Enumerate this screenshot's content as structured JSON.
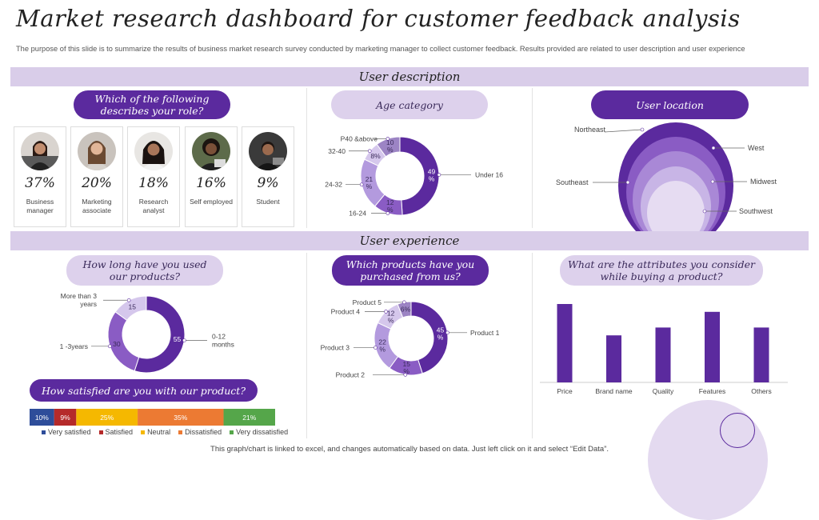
{
  "title": "Market research dashboard for customer feedback analysis",
  "subtitle": "The purpose of this slide is to summarize the results of business market research survey conducted by marketing manager to collect customer feedback. Results provided are related to user description and user experience",
  "sections": {
    "user_description": "User description",
    "user_experience": "User experience"
  },
  "footer": "This graph/chart is linked to excel, and changes automatically based on data. Just left click on it and select “Edit Data”.",
  "role": {
    "question": "Which of the following describes your role?",
    "items": [
      {
        "pct": "37%",
        "label": "Business manager"
      },
      {
        "pct": "20%",
        "label": "Marketing associate"
      },
      {
        "pct": "18%",
        "label": "Research analyst"
      },
      {
        "pct": "16%",
        "label": "Self employed"
      },
      {
        "pct": "9%",
        "label": "Student"
      }
    ]
  },
  "age": {
    "title": "Age category"
  },
  "location": {
    "title": "User location"
  },
  "usage": {
    "question": "How long have you used our products?"
  },
  "products": {
    "question": "Which products have you purchased from us?"
  },
  "attributes": {
    "question": "What are the attributes you consider while buying a product?"
  },
  "satisfaction": {
    "question": "How satisfied are you with our product?"
  },
  "colors": {
    "accent": "#5b2a9e",
    "band": "#d9cde9",
    "light": "#ddd1ec"
  },
  "chart_data": [
    {
      "id": "age",
      "type": "pie",
      "title": "Age category",
      "slices": [
        {
          "label": "Under 16",
          "value": 49,
          "text": "49 %"
        },
        {
          "label": "16-24",
          "value": 12,
          "text": "12 %"
        },
        {
          "label": "24-32",
          "value": 21,
          "text": "21 %"
        },
        {
          "label": "32-40",
          "value": 8,
          "text": "8%"
        },
        {
          "label": "P40 &above",
          "value": 10,
          "text": "10 %"
        }
      ]
    },
    {
      "id": "location",
      "type": "area",
      "title": "User location",
      "regions": [
        "Northeast",
        "West",
        "Midwest",
        "Southeast",
        "Southwest"
      ]
    },
    {
      "id": "usage",
      "type": "pie",
      "title": "How long have you used our products?",
      "slices": [
        {
          "label": "0-12 months",
          "value": 55,
          "text": "55"
        },
        {
          "label": "1 -3years",
          "value": 30,
          "text": "30"
        },
        {
          "label": "More than 3 years",
          "value": 15,
          "text": "15"
        }
      ]
    },
    {
      "id": "products",
      "type": "pie",
      "title": "Which products have you purchased from us?",
      "slices": [
        {
          "label": "Product 1",
          "value": 45,
          "text": "45 %"
        },
        {
          "label": "Product 2",
          "value": 15,
          "text": "15 %"
        },
        {
          "label": "Product 3",
          "value": 22,
          "text": "22 %"
        },
        {
          "label": "Product 4",
          "value": 12,
          "text": "12 %"
        },
        {
          "label": "Product 5",
          "value": 6,
          "text": "6%"
        }
      ]
    },
    {
      "id": "attributes",
      "type": "bar",
      "title": "What are the attributes you consider while buying a product?",
      "categories": [
        "Price",
        "Brand name",
        "Quality",
        "Features",
        "Others"
      ],
      "values": [
        100,
        60,
        70,
        90,
        70
      ],
      "ylim": [
        0,
        100
      ]
    },
    {
      "id": "satisfaction",
      "type": "bar",
      "title": "How satisfied are you with our product?",
      "orientation": "stacked-horizontal",
      "segments": [
        {
          "label": "Very satisfied",
          "value": 10,
          "text": "10%",
          "color": "#2e4d9a"
        },
        {
          "label": "Satisfied",
          "value": 9,
          "text": "9%",
          "color": "#b52a2a"
        },
        {
          "label": "Neutral",
          "value": 25,
          "text": "25%",
          "color": "#f5b800"
        },
        {
          "label": "Dissatisfied",
          "value": 35,
          "text": "35%",
          "color": "#ec7a33"
        },
        {
          "label": "Very dissatisfied",
          "value": 21,
          "text": "21%",
          "color": "#55a64a"
        }
      ]
    }
  ]
}
